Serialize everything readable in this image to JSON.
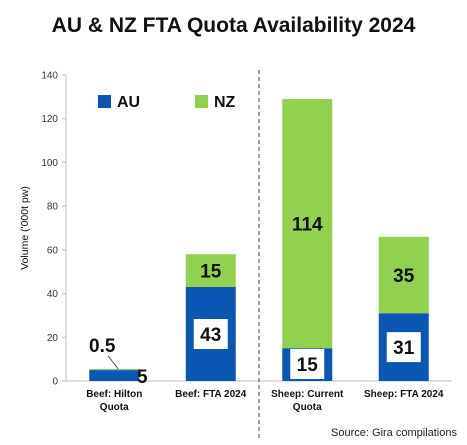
{
  "chart_data": {
    "type": "bar",
    "stacked": true,
    "title": "AU & NZ FTA Quota Availability 2024",
    "ylabel": "Volume ('000t pw)",
    "xlabel": "",
    "ylim": [
      0,
      140
    ],
    "yticks": [
      0,
      20,
      40,
      60,
      80,
      100,
      120,
      140
    ],
    "grid": false,
    "legend_position": "top-left",
    "categories": [
      [
        "Beef: Hilton",
        "Quota"
      ],
      [
        "Beef: FTA 2024"
      ],
      [
        "Sheep: Current",
        "Quota"
      ],
      [
        "Sheep: FTA 2024"
      ]
    ],
    "series": [
      {
        "name": "AU",
        "color": "#0b56b3",
        "values": [
          5,
          43,
          15,
          31
        ],
        "labels": [
          "5",
          "43",
          "15",
          "31"
        ]
      },
      {
        "name": "NZ",
        "color": "#92d050",
        "values": [
          0.5,
          15,
          114,
          35
        ],
        "labels": [
          "0.5",
          "15",
          "114",
          "35"
        ]
      }
    ],
    "divider_after_category": 1,
    "source": "Source: Gira compilations"
  }
}
